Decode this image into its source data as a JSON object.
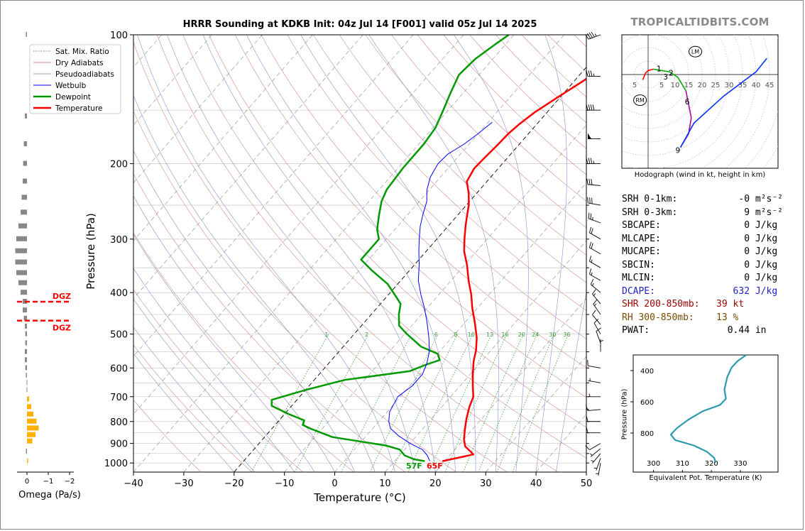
{
  "figure": {
    "title": "HRRR Sounding at KDKB Init: 04z Jul 14 [F001] valid 05z Jul 14 2025",
    "brand": "TROPICALTIDBITS.COM"
  },
  "colors": {
    "temperature": "#ff0000",
    "dewpoint": "#009900",
    "wetbulb": "#0000ff",
    "dry_adiabat": "#d98a8a",
    "moist_adiabat": "#8c8cd9",
    "mixing_ratio": "#3aa03a",
    "isotherm": "#000000",
    "hodo_low": "#ff0000",
    "hodo_mid": "#00aa00",
    "hodo_upper": "#aa00aa",
    "hodo_top": "#0033ff",
    "theta_e": "#2a9ab0",
    "dgz": "#ff0000",
    "omega_bar": "#ffb000",
    "dcape_text": "#2222cc",
    "shr_text": "#990000",
    "rh_text": "#7a4a00"
  },
  "chart_data": [
    {
      "type": "line",
      "id": "skewt",
      "title": "HRRR Sounding at KDKB Init: 04z Jul 14 [F001] valid 05z Jul 14 2025",
      "xlabel": "Temperature (°C)",
      "ylabel": "Pressure (hPa)",
      "xlim": [
        -40,
        50
      ],
      "ylim": [
        1050,
        100
      ],
      "y_scale": "log",
      "x_ticks": [
        -40,
        -30,
        -20,
        -10,
        0,
        10,
        20,
        30,
        40,
        50
      ],
      "x_tick_labels": [
        "−40",
        "−30",
        "−20",
        "−10",
        "0",
        "10",
        "20",
        "30",
        "40",
        "50"
      ],
      "y_ticks": [
        100,
        200,
        300,
        400,
        500,
        600,
        700,
        800,
        900,
        1000
      ],
      "grid": true,
      "legend": {
        "position": "top-left",
        "entries": [
          "Sat. Mix. Ratio",
          "Dry Adiabats",
          "Pseudoadiabats",
          "Wetbulb",
          "Dewpoint",
          "Temperature"
        ]
      },
      "mixing_ratio_labels": [
        "1",
        "2",
        "6",
        "8",
        "10",
        "13",
        "16",
        "20",
        "24",
        "30",
        "36"
      ],
      "surface_labels": {
        "dewpoint": "57F",
        "temperature": "65F"
      },
      "series": [
        {
          "name": "Temperature",
          "color": "#ff0000",
          "points": [
            [
              19.5,
              990
            ],
            [
              24.5,
              955
            ],
            [
              23.8,
              945
            ],
            [
              21.5,
              915
            ],
            [
              20.0,
              880
            ],
            [
              18.5,
              835
            ],
            [
              17.0,
              790
            ],
            [
              15.5,
              740
            ],
            [
              14.5,
              700
            ],
            [
              12.5,
              660
            ],
            [
              10.5,
              620
            ],
            [
              8.5,
              580
            ],
            [
              7.0,
              545
            ],
            [
              5.0,
              510
            ],
            [
              2.0,
              470
            ],
            [
              -1.0,
              435
            ],
            [
              -3.5,
              405
            ],
            [
              -6.5,
              375
            ],
            [
              -9.5,
              345
            ],
            [
              -12.5,
              320
            ],
            [
              -14.5,
              300
            ],
            [
              -16.5,
              280
            ],
            [
              -18.0,
              265
            ],
            [
              -19.5,
              250
            ],
            [
              -21.5,
              235
            ],
            [
              -24.0,
              220
            ],
            [
              -24.8,
              205
            ],
            [
              -24.6,
              195
            ],
            [
              -24.2,
              180
            ],
            [
              -24.0,
              170
            ],
            [
              -23.5,
              162
            ],
            [
              -22.5,
              152
            ],
            [
              -20.5,
              140
            ],
            [
              -18.0,
              127
            ],
            [
              -15.0,
              113
            ],
            [
              -12.5,
              101
            ]
          ]
        },
        {
          "name": "Dewpoint",
          "color": "#009900",
          "points": [
            [
              16.0,
              990
            ],
            [
              13.5,
              980
            ],
            [
              11.0,
              960
            ],
            [
              9.0,
              930
            ],
            [
              5.5,
              910
            ],
            [
              -6.5,
              870
            ],
            [
              -12.5,
              830
            ],
            [
              -14.5,
              815
            ],
            [
              -15.0,
              795
            ],
            [
              -19.0,
              770
            ],
            [
              -24.0,
              735
            ],
            [
              -25.0,
              712
            ],
            [
              -20.0,
              675
            ],
            [
              -14.0,
              640
            ],
            [
              -2.5,
              610
            ],
            [
              -0.5,
              590
            ],
            [
              1.5,
              575
            ],
            [
              0.0,
              556
            ],
            [
              -4.5,
              535
            ],
            [
              -9.5,
              500
            ],
            [
              -12.5,
              478
            ],
            [
              -14.5,
              450
            ],
            [
              -16.0,
              425
            ],
            [
              -18.0,
              410
            ],
            [
              -22.0,
              382
            ],
            [
              -27.5,
              355
            ],
            [
              -31.5,
              335
            ],
            [
              -31.5,
              325
            ],
            [
              -31.5,
              300
            ],
            [
              -33.5,
              285
            ],
            [
              -35.5,
              265
            ],
            [
              -37.5,
              245
            ],
            [
              -38.5,
              230
            ],
            [
              -39.0,
              205
            ],
            [
              -39.0,
              180
            ],
            [
              -39.5,
              165
            ],
            [
              -41.0,
              150
            ],
            [
              -42.5,
              137
            ],
            [
              -44.0,
              124
            ],
            [
              -43.5,
              114
            ],
            [
              -42.0,
              105
            ],
            [
              -41.0,
              100
            ]
          ]
        },
        {
          "name": "Wetbulb",
          "color": "#0000ff",
          "points": [
            [
              17.0,
              990
            ],
            [
              15.5,
              960
            ],
            [
              13.5,
              930
            ],
            [
              10.0,
              900
            ],
            [
              6.5,
              865
            ],
            [
              3.5,
              830
            ],
            [
              2.0,
              800
            ],
            [
              0.5,
              760
            ],
            [
              -0.5,
              700
            ],
            [
              0.5,
              660
            ],
            [
              0.5,
              620
            ],
            [
              -0.5,
              585
            ],
            [
              -2.0,
              550
            ],
            [
              -4.5,
              510
            ],
            [
              -7.5,
              470
            ],
            [
              -10.5,
              435
            ],
            [
              -13.5,
              405
            ],
            [
              -16.5,
              375
            ],
            [
              -19.0,
              345
            ],
            [
              -21.5,
              320
            ],
            [
              -23.5,
              300
            ],
            [
              -25.5,
              280
            ],
            [
              -27.0,
              263
            ],
            [
              -28.5,
              245
            ],
            [
              -30.5,
              230
            ],
            [
              -32.0,
              215
            ],
            [
              -32.8,
              200
            ],
            [
              -32.5,
              190
            ],
            [
              -31.0,
              180
            ],
            [
              -30.0,
              170
            ],
            [
              -29.2,
              160
            ]
          ]
        }
      ]
    },
    {
      "type": "bar",
      "id": "omega",
      "xlabel": "Omega (Pa/s)",
      "x_ticks": [
        0,
        -1,
        -2
      ],
      "x_tick_labels": [
        "0",
        "−1",
        "−2"
      ],
      "dgz_label": "DGZ",
      "dgz_levels_hpa": [
        420,
        465
      ],
      "values": [
        {
          "p": 100,
          "w": 0.05
        },
        {
          "p": 155,
          "w": 0.1
        },
        {
          "p": 180,
          "w": 0.15
        },
        {
          "p": 200,
          "w": 0.18
        },
        {
          "p": 220,
          "w": 0.2
        },
        {
          "p": 240,
          "w": 0.25
        },
        {
          "p": 260,
          "w": 0.3
        },
        {
          "p": 280,
          "w": 0.4
        },
        {
          "p": 300,
          "w": 0.5
        },
        {
          "p": 320,
          "w": 0.55
        },
        {
          "p": 340,
          "w": 0.55
        },
        {
          "p": 360,
          "w": 0.5
        },
        {
          "p": 380,
          "w": 0.4
        },
        {
          "p": 400,
          "w": 0.3
        },
        {
          "p": 420,
          "w": 0.2
        },
        {
          "p": 440,
          "w": 0.2
        },
        {
          "p": 460,
          "w": 0.15
        },
        {
          "p": 480,
          "w": 0.1
        },
        {
          "p": 500,
          "w": 0.08
        },
        {
          "p": 525,
          "w": 0.08
        },
        {
          "p": 550,
          "w": 0.1
        },
        {
          "p": 575,
          "w": 0.1
        },
        {
          "p": 600,
          "w": 0.08
        },
        {
          "p": 625,
          "w": 0.05
        },
        {
          "p": 650,
          "w": 0.02
        },
        {
          "p": 675,
          "w": 0.02
        },
        {
          "p": 710,
          "w": -0.1
        },
        {
          "p": 740,
          "w": -0.2
        },
        {
          "p": 770,
          "w": -0.3
        },
        {
          "p": 800,
          "w": -0.45
        },
        {
          "p": 830,
          "w": -0.55
        },
        {
          "p": 860,
          "w": -0.4
        },
        {
          "p": 890,
          "w": -0.25
        },
        {
          "p": 940,
          "w": 0.05
        },
        {
          "p": 990,
          "w": -0.05
        }
      ]
    },
    {
      "type": "line",
      "id": "hodograph",
      "title": "Hodograph (wind in kt, height in km)",
      "ring_labels": [
        "5",
        "5",
        "10",
        "15",
        "20",
        "25",
        "30",
        "35",
        "40",
        "45"
      ],
      "storm_markers": [
        "RM",
        "LM"
      ],
      "height_labels": [
        "1",
        "3",
        "2",
        "6",
        "9"
      ],
      "segments": [
        {
          "km": "0-3",
          "color": "#ff0000",
          "points": [
            [
              -2,
              -2
            ],
            [
              -1,
              0.5
            ],
            [
              0,
              1.5
            ],
            [
              2,
              2
            ]
          ]
        },
        {
          "km": "3-6",
          "color": "#00aa00",
          "points": [
            [
              2,
              2
            ],
            [
              8,
              1
            ],
            [
              11,
              -1
            ],
            [
              14,
              -6
            ]
          ]
        },
        {
          "km": "6-9",
          "color": "#aa00aa",
          "points": [
            [
              14,
              -6
            ],
            [
              15,
              -11
            ],
            [
              16,
              -16
            ],
            [
              15,
              -22
            ],
            [
              12,
              -27
            ]
          ]
        },
        {
          "km": "9+",
          "color": "#0033ff",
          "points": [
            [
              12,
              -27
            ],
            [
              17,
              -18
            ],
            [
              28,
              -8
            ],
            [
              40,
              1
            ],
            [
              44,
              6
            ]
          ]
        }
      ]
    },
    {
      "type": "line",
      "id": "theta_e",
      "xlabel": "Equivalent Pot. Temperature (K)",
      "ylabel": "Pressure (hPa)",
      "xlim": [
        300,
        340
      ],
      "ylim": [
        1000,
        300
      ],
      "x_ticks": [
        300,
        310,
        320,
        330
      ],
      "y_ticks": [
        400,
        600,
        800
      ],
      "series": [
        {
          "name": "theta_e",
          "points": [
            [
              332,
              300
            ],
            [
              329,
              340
            ],
            [
              327,
              380
            ],
            [
              325.5,
              440
            ],
            [
              324.5,
              520
            ],
            [
              325,
              580
            ],
            [
              323,
              620
            ],
            [
              317,
              660
            ],
            [
              312,
              715
            ],
            [
              308,
              770
            ],
            [
              306,
              810
            ],
            [
              307.5,
              845
            ],
            [
              314,
              880
            ],
            [
              318.5,
              920
            ],
            [
              321,
              960
            ],
            [
              321.5,
              990
            ]
          ]
        }
      ]
    }
  ],
  "params": [
    {
      "label": "SRH 0-1km:",
      "value": "-0",
      "unit": "m²s⁻²",
      "color": "#000000"
    },
    {
      "label": "SRH 0-3km:",
      "value": "9",
      "unit": "m²s⁻²",
      "color": "#000000"
    },
    {
      "label": "SBCAPE:",
      "value": "0",
      "unit": "J/kg",
      "color": "#000000"
    },
    {
      "label": "MLCAPE:",
      "value": "0",
      "unit": "J/kg",
      "color": "#000000"
    },
    {
      "label": "MUCAPE:",
      "value": "0",
      "unit": "J/kg",
      "color": "#000000"
    },
    {
      "label": "SBCIN:",
      "value": "0",
      "unit": "J/kg",
      "color": "#000000"
    },
    {
      "label": "MLCIN:",
      "value": "0",
      "unit": "J/kg",
      "color": "#000000"
    },
    {
      "label": "DCAPE:",
      "value": "632",
      "unit": "J/kg",
      "color": "#2222cc"
    },
    {
      "label": "SHR 200-850mb:",
      "value": "39",
      "unit": "kt",
      "color": "#990000"
    },
    {
      "label": "RH 300-850mb:",
      "value": "13",
      "unit": "%",
      "color": "#7a4a00"
    },
    {
      "label": "PWAT:",
      "value": "0.44",
      "unit": "in",
      "color": "#000000"
    }
  ],
  "wind_barbs": [
    {
      "p": 100,
      "dir": 250,
      "spd": 45
    },
    {
      "p": 125,
      "dir": 270,
      "spd": 35
    },
    {
      "p": 150,
      "dir": 270,
      "spd": 40
    },
    {
      "p": 175,
      "dir": 270,
      "spd": 50
    },
    {
      "p": 200,
      "dir": 270,
      "spd": 35
    },
    {
      "p": 225,
      "dir": 275,
      "spd": 30
    },
    {
      "p": 250,
      "dir": 280,
      "spd": 30
    },
    {
      "p": 275,
      "dir": 290,
      "spd": 25
    },
    {
      "p": 300,
      "dir": 300,
      "spd": 20
    },
    {
      "p": 325,
      "dir": 300,
      "spd": 20
    },
    {
      "p": 350,
      "dir": 300,
      "spd": 15
    },
    {
      "p": 375,
      "dir": 300,
      "spd": 15
    },
    {
      "p": 400,
      "dir": 310,
      "spd": 15
    },
    {
      "p": 425,
      "dir": 320,
      "spd": 15
    },
    {
      "p": 450,
      "dir": 325,
      "spd": 15
    },
    {
      "p": 475,
      "dir": 320,
      "spd": 10
    },
    {
      "p": 500,
      "dir": 330,
      "spd": 10
    },
    {
      "p": 525,
      "dir": 340,
      "spd": 10
    },
    {
      "p": 550,
      "dir": 0,
      "spd": 5
    },
    {
      "p": 600,
      "dir": 280,
      "spd": 10
    },
    {
      "p": 650,
      "dir": 280,
      "spd": 5
    },
    {
      "p": 700,
      "dir": 270,
      "spd": 5
    },
    {
      "p": 750,
      "dir": 265,
      "spd": 10
    },
    {
      "p": 800,
      "dir": 270,
      "spd": 10
    },
    {
      "p": 850,
      "dir": 270,
      "spd": 10
    },
    {
      "p": 900,
      "dir": 240,
      "spd": 10
    },
    {
      "p": 925,
      "dir": 230,
      "spd": 5
    },
    {
      "p": 950,
      "dir": 220,
      "spd": 5
    },
    {
      "p": 975,
      "dir": 200,
      "spd": 5
    },
    {
      "p": 1000,
      "dir": 190,
      "spd": 5
    }
  ]
}
